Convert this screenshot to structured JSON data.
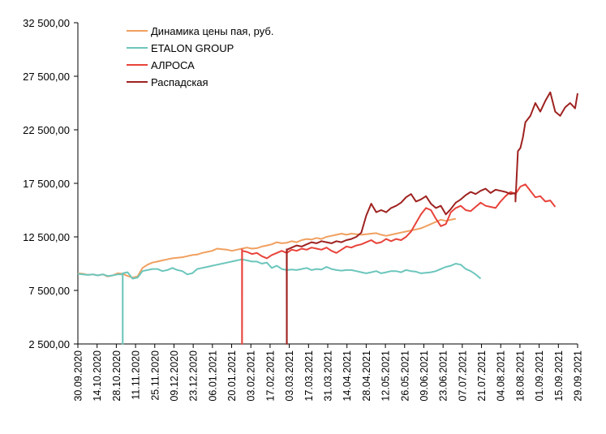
{
  "chart_data": {
    "type": "line",
    "y_ticks": [
      "32 500,00",
      "27 500,00",
      "22 500,00",
      "17 500,00",
      "12 500,00",
      "7 500,00",
      "2 500,00"
    ],
    "ylim": [
      2500,
      32500
    ],
    "x_tick_labels": [
      "30.09.2020",
      "14.10.2020",
      "28.10.2020",
      "11.11.2020",
      "25.11.2020",
      "09.12.2020",
      "23.12.2020",
      "06.01.2021",
      "20.01.2021",
      "03.02.2021",
      "17.02.2021",
      "03.03.2021",
      "17.03.2021",
      "31.03.2021",
      "14.04.2021",
      "28.04.2021",
      "12.05.2021",
      "26.05.2021",
      "09.06.2021",
      "23.06.2021",
      "07.07.2021",
      "21.07.2021",
      "04.08.2021",
      "18.08.2021",
      "01.09.2021",
      "15.09.2021",
      "29.09.2021"
    ],
    "legend_placement": "top-left",
    "grid": false,
    "series": [
      {
        "name": "Динамика цены пая, руб.",
        "color": "#F0A060",
        "points": [
          [
            0,
            9100
          ],
          [
            1,
            9050
          ],
          [
            2,
            8950
          ],
          [
            3,
            9000
          ],
          [
            4,
            8900
          ],
          [
            5,
            9000
          ],
          [
            6,
            8800
          ],
          [
            7,
            8900
          ],
          [
            8,
            9100
          ],
          [
            9,
            9050
          ],
          [
            10,
            8850
          ],
          [
            11,
            8700
          ],
          [
            12,
            8800
          ],
          [
            13,
            9600
          ],
          [
            14,
            9900
          ],
          [
            15,
            10100
          ],
          [
            16,
            10200
          ],
          [
            17,
            10300
          ],
          [
            18,
            10400
          ],
          [
            19,
            10500
          ],
          [
            20,
            10550
          ],
          [
            21,
            10600
          ],
          [
            22,
            10700
          ],
          [
            23,
            10800
          ],
          [
            24,
            10850
          ],
          [
            25,
            11000
          ],
          [
            26,
            11100
          ],
          [
            27,
            11200
          ],
          [
            28,
            11400
          ],
          [
            29,
            11350
          ],
          [
            30,
            11300
          ],
          [
            31,
            11200
          ],
          [
            32,
            11300
          ],
          [
            33,
            11400
          ],
          [
            34,
            11500
          ],
          [
            35,
            11400
          ],
          [
            36,
            11450
          ],
          [
            37,
            11600
          ],
          [
            38,
            11700
          ],
          [
            39,
            11800
          ],
          [
            40,
            12000
          ],
          [
            41,
            11900
          ],
          [
            42,
            11950
          ],
          [
            43,
            12100
          ],
          [
            44,
            12000
          ],
          [
            45,
            12200
          ],
          [
            46,
            12300
          ],
          [
            47,
            12250
          ],
          [
            48,
            12400
          ],
          [
            49,
            12300
          ],
          [
            50,
            12500
          ],
          [
            51,
            12600
          ],
          [
            52,
            12700
          ],
          [
            53,
            12800
          ],
          [
            54,
            12700
          ],
          [
            55,
            12800
          ],
          [
            56,
            12750
          ],
          [
            57,
            12700
          ],
          [
            58,
            12750
          ],
          [
            59,
            12800
          ],
          [
            60,
            12850
          ],
          [
            61,
            12700
          ],
          [
            62,
            12600
          ],
          [
            63,
            12700
          ],
          [
            64,
            12800
          ],
          [
            65,
            12900
          ],
          [
            66,
            13000
          ],
          [
            67,
            13100
          ],
          [
            68,
            13200
          ],
          [
            69,
            13300
          ],
          [
            70,
            13500
          ],
          [
            71,
            13700
          ],
          [
            72,
            13900
          ],
          [
            73,
            14100
          ],
          [
            74,
            14000
          ],
          [
            75,
            14100
          ],
          [
            76,
            14200
          ]
        ]
      },
      {
        "name": "ETALON GROUP",
        "color": "#6CC6BC",
        "points": [
          [
            0,
            9050
          ],
          [
            1,
            9000
          ],
          [
            2,
            8950
          ],
          [
            3,
            9000
          ],
          [
            4,
            8900
          ],
          [
            5,
            9000
          ],
          [
            6,
            8850
          ],
          [
            7,
            8900
          ],
          [
            8,
            9000
          ],
          [
            9,
            9000
          ],
          [
            9.01,
            2500
          ],
          [
            9.02,
            2500
          ],
          [
            9.03,
            9100
          ],
          [
            10,
            9200
          ],
          [
            11,
            8600
          ],
          [
            12,
            8700
          ],
          [
            13,
            9300
          ],
          [
            14,
            9400
          ],
          [
            15,
            9500
          ],
          [
            16,
            9500
          ],
          [
            17,
            9300
          ],
          [
            18,
            9400
          ],
          [
            19,
            9600
          ],
          [
            20,
            9400
          ],
          [
            21,
            9300
          ],
          [
            22,
            9000
          ],
          [
            23,
            9100
          ],
          [
            24,
            9500
          ],
          [
            25,
            9600
          ],
          [
            26,
            9700
          ],
          [
            27,
            9800
          ],
          [
            28,
            9900
          ],
          [
            29,
            10000
          ],
          [
            30,
            10100
          ],
          [
            31,
            10200
          ],
          [
            32,
            10300
          ],
          [
            33,
            10400
          ],
          [
            34,
            10300
          ],
          [
            35,
            10200
          ],
          [
            36,
            10200
          ],
          [
            37,
            10000
          ],
          [
            38,
            10100
          ],
          [
            39,
            9600
          ],
          [
            40,
            9800
          ],
          [
            41,
            9500
          ],
          [
            42,
            9400
          ],
          [
            43,
            9450
          ],
          [
            44,
            9400
          ],
          [
            45,
            9500
          ],
          [
            46,
            9600
          ],
          [
            47,
            9400
          ],
          [
            48,
            9500
          ],
          [
            49,
            9450
          ],
          [
            50,
            9700
          ],
          [
            51,
            9500
          ],
          [
            52,
            9400
          ],
          [
            53,
            9350
          ],
          [
            54,
            9400
          ],
          [
            55,
            9400
          ],
          [
            56,
            9300
          ],
          [
            57,
            9200
          ],
          [
            58,
            9100
          ],
          [
            59,
            9200
          ],
          [
            60,
            9300
          ],
          [
            61,
            9100
          ],
          [
            62,
            9200
          ],
          [
            63,
            9300
          ],
          [
            64,
            9300
          ],
          [
            65,
            9200
          ],
          [
            66,
            9400
          ],
          [
            67,
            9300
          ],
          [
            68,
            9250
          ],
          [
            69,
            9100
          ],
          [
            70,
            9150
          ],
          [
            71,
            9200
          ],
          [
            72,
            9300
          ],
          [
            73,
            9500
          ],
          [
            74,
            9700
          ],
          [
            75,
            9800
          ],
          [
            76,
            10000
          ],
          [
            77,
            9900
          ],
          [
            78,
            9500
          ],
          [
            79,
            9300
          ],
          [
            80,
            9000
          ],
          [
            81,
            8600
          ]
        ]
      },
      {
        "name": "АЛРОСА",
        "color": "#E8433A",
        "points": [
          [
            33,
            11400
          ],
          [
            33.01,
            2500
          ],
          [
            33.02,
            2500
          ],
          [
            33.03,
            11200
          ],
          [
            34,
            11100
          ],
          [
            35,
            10900
          ],
          [
            36,
            11000
          ],
          [
            37,
            10700
          ],
          [
            38,
            10500
          ],
          [
            39,
            10800
          ],
          [
            40,
            11000
          ],
          [
            41,
            11200
          ],
          [
            42,
            11000
          ],
          [
            43,
            11300
          ],
          [
            44,
            11200
          ],
          [
            45,
            11400
          ],
          [
            46,
            11300
          ],
          [
            47,
            11500
          ],
          [
            48,
            11400
          ],
          [
            49,
            11300
          ],
          [
            50,
            11500
          ],
          [
            51,
            11200
          ],
          [
            52,
            11000
          ],
          [
            53,
            11300
          ],
          [
            54,
            11600
          ],
          [
            55,
            11500
          ],
          [
            56,
            11700
          ],
          [
            57,
            11800
          ],
          [
            58,
            12000
          ],
          [
            59,
            12200
          ],
          [
            60,
            11900
          ],
          [
            61,
            12000
          ],
          [
            62,
            12300
          ],
          [
            63,
            12100
          ],
          [
            64,
            12300
          ],
          [
            65,
            12200
          ],
          [
            66,
            12500
          ],
          [
            67,
            13000
          ],
          [
            68,
            13800
          ],
          [
            69,
            14600
          ],
          [
            70,
            15200
          ],
          [
            71,
            15000
          ],
          [
            72,
            14200
          ],
          [
            73,
            13500
          ],
          [
            74,
            13700
          ],
          [
            75,
            14800
          ],
          [
            76,
            15200
          ],
          [
            77,
            15400
          ],
          [
            78,
            15000
          ],
          [
            79,
            14900
          ],
          [
            80,
            15300
          ],
          [
            81,
            15700
          ],
          [
            82,
            15400
          ],
          [
            83,
            15300
          ],
          [
            84,
            15200
          ],
          [
            85,
            15800
          ],
          [
            86,
            16300
          ],
          [
            87,
            16700
          ],
          [
            88,
            16500
          ],
          [
            89,
            17200
          ],
          [
            90,
            17400
          ],
          [
            91,
            16800
          ],
          [
            92,
            16200
          ],
          [
            93,
            16300
          ],
          [
            94,
            15800
          ],
          [
            95,
            15900
          ],
          [
            96,
            15300
          ]
        ]
      },
      {
        "name": "Распадская",
        "color": "#9E2220",
        "points": [
          [
            42,
            11400
          ],
          [
            42.01,
            2500
          ],
          [
            42.02,
            2500
          ],
          [
            42.03,
            11300
          ],
          [
            43,
            11500
          ],
          [
            44,
            11700
          ],
          [
            45,
            11600
          ],
          [
            46,
            11800
          ],
          [
            47,
            12000
          ],
          [
            48,
            11900
          ],
          [
            49,
            12100
          ],
          [
            50,
            12000
          ],
          [
            51,
            11900
          ],
          [
            52,
            12100
          ],
          [
            53,
            12000
          ],
          [
            54,
            12200
          ],
          [
            55,
            12300
          ],
          [
            56,
            12500
          ],
          [
            57,
            12900
          ],
          [
            58,
            14500
          ],
          [
            59,
            15600
          ],
          [
            60,
            14800
          ],
          [
            61,
            15000
          ],
          [
            62,
            14800
          ],
          [
            63,
            15200
          ],
          [
            64,
            15400
          ],
          [
            65,
            15700
          ],
          [
            66,
            16200
          ],
          [
            67,
            16500
          ],
          [
            68,
            15800
          ],
          [
            69,
            16000
          ],
          [
            70,
            16300
          ],
          [
            71,
            15600
          ],
          [
            72,
            15200
          ],
          [
            73,
            15400
          ],
          [
            74,
            14600
          ],
          [
            75,
            15100
          ],
          [
            76,
            15700
          ],
          [
            77,
            16000
          ],
          [
            78,
            16400
          ],
          [
            79,
            16700
          ],
          [
            80,
            16500
          ],
          [
            81,
            16800
          ],
          [
            82,
            17000
          ],
          [
            83,
            16600
          ],
          [
            84,
            16900
          ],
          [
            85,
            16800
          ],
          [
            86,
            16700
          ],
          [
            87,
            16500
          ],
          [
            88,
            16600
          ],
          [
            88.01,
            15800
          ],
          [
            88.5,
            20500
          ],
          [
            89,
            20800
          ],
          [
            89.5,
            21800
          ],
          [
            90,
            23200
          ],
          [
            91,
            23800
          ],
          [
            92,
            25000
          ],
          [
            93,
            24200
          ],
          [
            94,
            25200
          ],
          [
            95,
            26000
          ],
          [
            96,
            24200
          ],
          [
            97,
            23800
          ],
          [
            98,
            24600
          ],
          [
            99,
            25000
          ],
          [
            100,
            24500
          ],
          [
            100.5,
            25900
          ]
        ]
      }
    ]
  }
}
